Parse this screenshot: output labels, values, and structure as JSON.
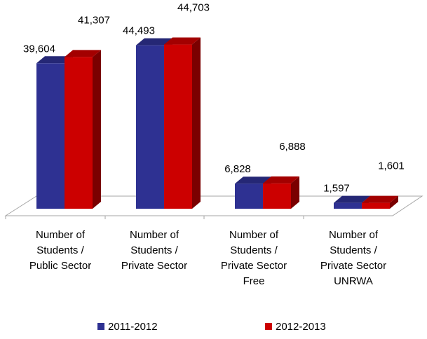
{
  "chart_data": {
    "type": "bar",
    "style": "3d-clustered",
    "categories": [
      [
        "Number of",
        "Students /",
        "Public Sector"
      ],
      [
        "Number of",
        "Students /",
        "Private Sector"
      ],
      [
        "Number of",
        "Students /",
        "Private Sector",
        "Free"
      ],
      [
        "Number of",
        "Students /",
        "Private Sector",
        "UNRWA"
      ]
    ],
    "series": [
      {
        "name": "2011-2012",
        "color": "#2E3192",
        "values": [
          39604,
          44493,
          6828,
          1597
        ],
        "labels": [
          "39,604",
          "44,493",
          "6,828",
          "1,597"
        ]
      },
      {
        "name": "2012-2013",
        "color": "#CC0000",
        "values": [
          41307,
          44703,
          6888,
          1601
        ],
        "labels": [
          "41,307",
          "44,703",
          "6,888",
          "1,601"
        ]
      }
    ],
    "title": "",
    "xlabel": "",
    "ylabel": "",
    "ylim": [
      0,
      45000
    ],
    "grid": false,
    "legend": "bottom"
  }
}
